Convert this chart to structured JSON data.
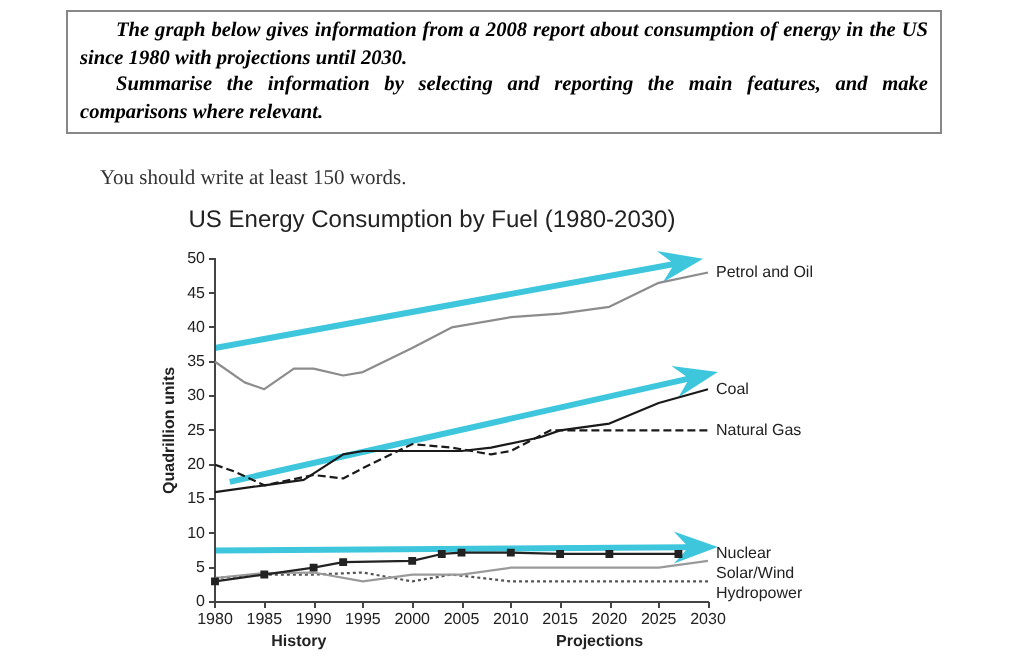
{
  "chart_data": {
    "type": "line",
    "title": "US Energy Consumption by Fuel (1980-2030)",
    "ylabel": "Quadrillion units",
    "annotations": [
      "The graph below gives information from a 2008 report about consumption of energy in the US since 1980 with projections until 2030.",
      "Summarise the information by selecting and reporting the main features, and make comparisons where relevant.",
      "You should write at least 150 words.",
      "History",
      "Projections"
    ],
    "xlim": [
      1980,
      2030
    ],
    "xticks": [
      1980,
      1985,
      1990,
      1995,
      2000,
      2005,
      2010,
      2015,
      2020,
      2025,
      2030
    ],
    "ylim": [
      0,
      50
    ],
    "yticks": [
      0,
      5,
      10,
      15,
      20,
      25,
      30,
      35,
      40,
      45,
      50
    ],
    "grid": false,
    "legend": false,
    "series": [
      {
        "name": "Petrol and Oil",
        "color": "#8c8c8c",
        "line_style": "solid",
        "marker": "none",
        "x": [
          1980,
          1983,
          1985,
          1988,
          1990,
          1993,
          1995,
          2000,
          2004,
          2010,
          2015,
          2020,
          2025,
          2030
        ],
        "values": [
          35,
          32,
          31,
          34,
          34,
          33,
          33.5,
          37,
          40,
          41.5,
          42,
          43,
          46.5,
          48
        ]
      },
      {
        "name": "Coal",
        "color": "#1a1a1a",
        "line_style": "solid",
        "marker": "none",
        "x": [
          1980,
          1985,
          1989,
          1993,
          1995,
          2000,
          2005,
          2008,
          2013,
          2015,
          2020,
          2025,
          2030
        ],
        "values": [
          16,
          17,
          17.8,
          21.5,
          22,
          22,
          22,
          22.5,
          24,
          25,
          26,
          29,
          31
        ]
      },
      {
        "name": "Natural Gas",
        "color": "#1a1a1a",
        "line_style": "dashed",
        "marker": "none",
        "x": [
          1980,
          1982,
          1985,
          1990,
          1993,
          1995,
          2000,
          2004,
          2008,
          2010,
          2014,
          2030
        ],
        "values": [
          20,
          19,
          17,
          18.5,
          18,
          19.5,
          23,
          22.5,
          21.5,
          22,
          25,
          25
        ]
      },
      {
        "name": "Nuclear",
        "color": "#222222",
        "line_style": "solid",
        "marker": "square",
        "x": [
          1980,
          1985,
          1990,
          1993,
          2000,
          2003,
          2005,
          2010,
          2015,
          2020,
          2027
        ],
        "values": [
          3,
          4,
          5,
          5.8,
          6,
          7,
          7.2,
          7.2,
          7,
          7,
          7
        ]
      },
      {
        "name": "Solar/Wind",
        "color": "#9a9a9a",
        "line_style": "solid",
        "marker": "none",
        "x": [
          1980,
          1985,
          1990,
          1995,
          2000,
          2005,
          2010,
          2025,
          2030
        ],
        "values": [
          3.5,
          4.2,
          4.3,
          3,
          4,
          4,
          5,
          5,
          6
        ]
      },
      {
        "name": "Hydropower",
        "color": "#555555",
        "line_style": "dotted",
        "marker": "none",
        "x": [
          1980,
          1985,
          1990,
          1995,
          2000,
          2004,
          2010,
          2030
        ],
        "values": [
          3.5,
          4,
          4,
          4.3,
          3,
          4,
          3,
          3
        ]
      }
    ]
  }
}
